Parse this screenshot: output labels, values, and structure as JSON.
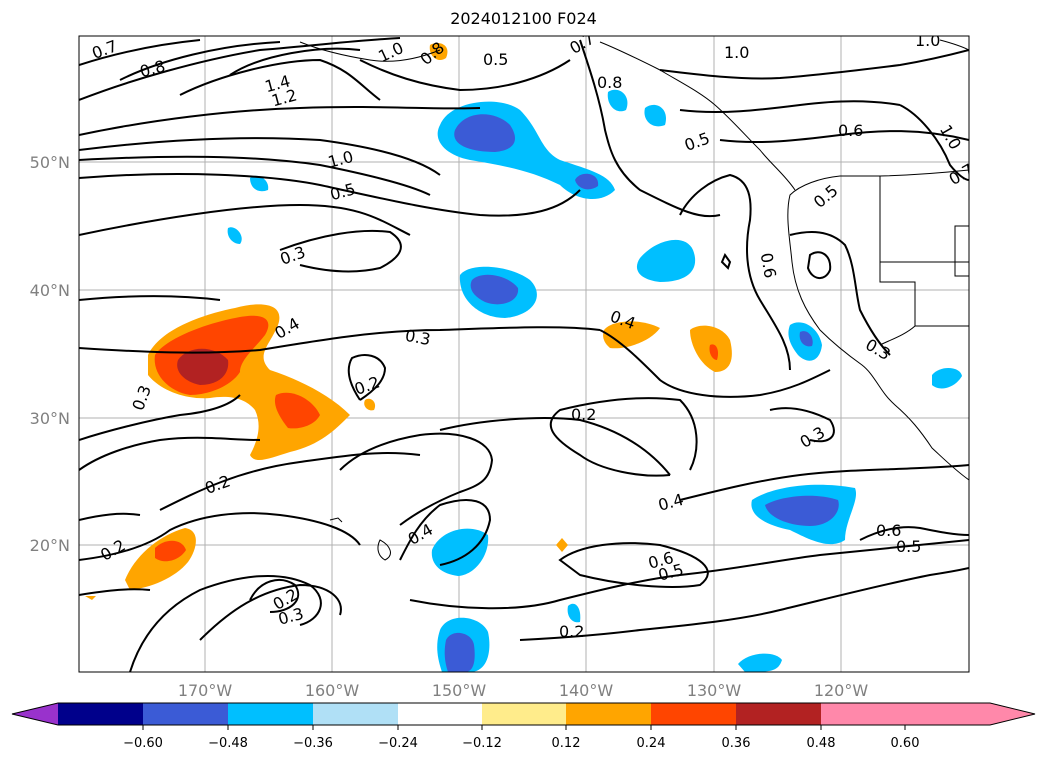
{
  "title": "2024012100 F024",
  "map": {
    "lat_ticks": [
      "50°N",
      "40°N",
      "30°N",
      "20°N"
    ],
    "lon_ticks": [
      "170°W",
      "160°W",
      "150°W",
      "140°W",
      "130°W",
      "120°W"
    ],
    "contour_labels": [
      "0.7",
      "0.8",
      "1.4",
      "1.2",
      "1.0",
      "0.8",
      "0.5",
      "0.7",
      "0.8",
      "1.0",
      "1.0",
      "1.0",
      "0.5",
      "0.6",
      "0.5",
      "0.7",
      "1.0",
      "0.5",
      "0.3",
      "0.6",
      "0.4",
      "0.3",
      "0.3",
      "0.4",
      "0.2",
      "0.3",
      "0.2",
      "0.2",
      "0.3",
      "0.4",
      "0.2",
      "0.6",
      "0.5",
      "0.6",
      "0.5",
      "0.4",
      "0.3",
      "0.2",
      "0.2"
    ]
  },
  "colorbar": {
    "ticks": [
      "−0.60",
      "−0.48",
      "−0.36",
      "−0.24",
      "−0.12",
      "0.12",
      "0.24",
      "0.36",
      "0.48",
      "0.60"
    ],
    "colors": [
      "#9932cc",
      "#00008b",
      "#3b5bd6",
      "#00bfff",
      "#b0e0f6",
      "#ffffff",
      "#ffec8b",
      "#ffa500",
      "#ff4500",
      "#b22222",
      "#ff88aa"
    ]
  }
}
